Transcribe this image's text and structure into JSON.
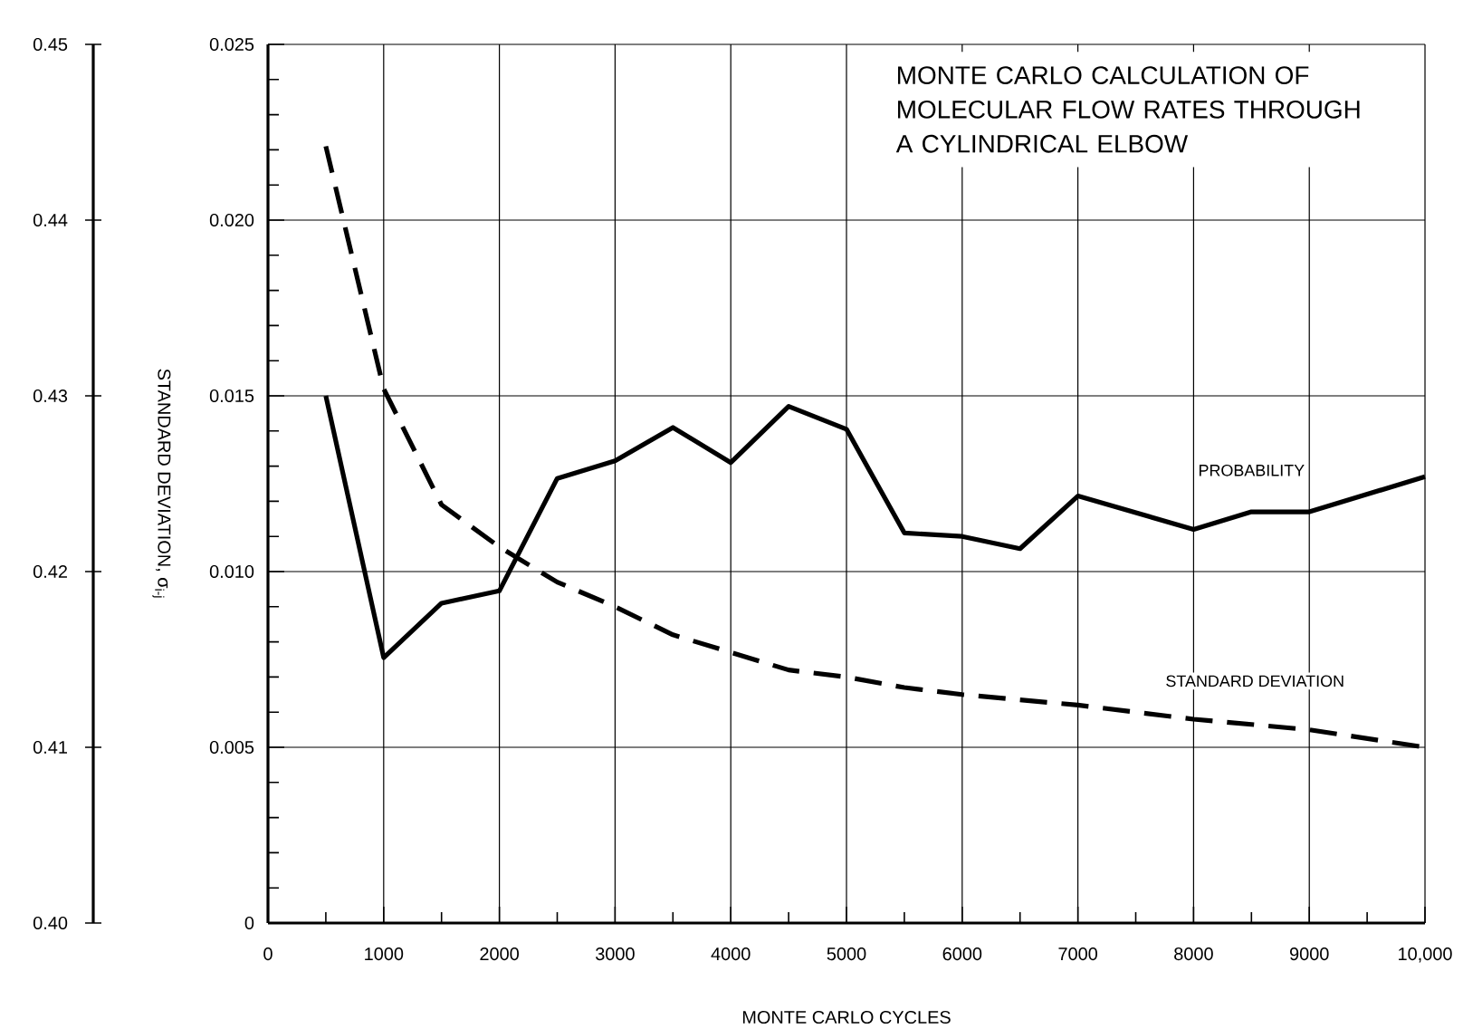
{
  "chart_data": {
    "type": "line",
    "title": "MONTE CARLO CALCULATION OF MOLECULAR FLOW RATES THROUGH A CYLINDRICAL ELBOW",
    "xlabel": "MONTE CARLO CYCLES",
    "ylabel": "STANDARD DEVIATION, σ$_{i-j}$",
    "series": [
      {
        "name": "PROBABILITY",
        "color": "#000000",
        "line_style": "solid",
        "axis": "y2",
        "x": [
          500,
          1000,
          1500,
          2000,
          2500,
          3000,
          3500,
          4000,
          4500,
          5000,
          5500,
          6000,
          6500,
          7000,
          8000,
          8500,
          9000,
          10000
        ],
        "values": [
          0.43,
          0.4151,
          0.4182,
          0.4189,
          0.4253,
          0.4263,
          0.4282,
          0.4262,
          0.4294,
          0.4281,
          0.4222,
          0.422,
          0.4213,
          0.4243,
          0.4224,
          0.4234,
          0.4234,
          0.4254
        ]
      },
      {
        "name": "STANDARD DEVIATION",
        "color": "#000000",
        "line_style": "dashed",
        "x": [
          500,
          1000,
          1500,
          2000,
          2500,
          3000,
          3500,
          4000,
          4500,
          5000,
          5500,
          6000,
          7000,
          8000,
          9000,
          10000
        ],
        "values": [
          0.0221,
          0.0152,
          0.0119,
          0.0107,
          0.0097,
          0.009,
          0.0082,
          0.0077,
          0.0072,
          0.007,
          0.0067,
          0.0065,
          0.0062,
          0.0058,
          0.0055,
          0.005
        ]
      }
    ],
    "xlim": [
      0,
      10000
    ],
    "xticks": [
      0,
      {
        "value": 500,
        "label": null
      },
      1000,
      {
        "value": 1500,
        "label": null
      },
      2000,
      {
        "value": 2500,
        "label": null
      },
      3000,
      {
        "value": 3500,
        "label": null
      },
      4000,
      {
        "value": 4500,
        "label": null
      },
      5000,
      {
        "value": 5500,
        "label": null
      },
      6000,
      {
        "value": 6500,
        "label": null
      },
      7000,
      {
        "value": 7500,
        "label": null
      },
      8000,
      {
        "value": 8500,
        "label": null
      },
      9000,
      {
        "value": 9500,
        "label": null
      },
      {
        "value": 10000,
        "label": "10,000"
      }
    ],
    "ylim": [
      0,
      0.025
    ],
    "yticks": [
      0,
      {
        "value": 0.001,
        "label": null
      },
      {
        "value": 0.002,
        "label": null
      },
      {
        "value": 0.003,
        "label": null
      },
      {
        "value": 0.004,
        "label": null
      },
      0.005,
      {
        "value": 0.006,
        "label": null
      },
      {
        "value": 0.007,
        "label": null
      },
      {
        "value": 0.008,
        "label": null
      },
      {
        "value": 0.009,
        "label": null
      },
      {
        "value": 0.01,
        "label": "0.010"
      },
      {
        "value": 0.011,
        "label": null
      },
      {
        "value": 0.012,
        "label": null
      },
      {
        "value": 0.013,
        "label": null
      },
      {
        "value": 0.014,
        "label": null
      },
      0.015,
      {
        "value": 0.016,
        "label": null
      },
      {
        "value": 0.017,
        "label": null
      },
      {
        "value": 0.018,
        "label": null
      },
      {
        "value": 0.019,
        "label": null
      },
      {
        "value": 0.02,
        "label": "0.020"
      },
      {
        "value": 0.021,
        "label": null
      },
      {
        "value": 0.022,
        "label": null
      },
      {
        "value": 0.023,
        "label": null
      },
      {
        "value": 0.024,
        "label": null
      },
      0.025
    ],
    "y2lim": [
      0.4,
      0.45
    ],
    "y2ticks": [
      {
        "value": 0.4,
        "label": "0.40"
      },
      {
        "value": 0.402,
        "label": null
      },
      {
        "value": 0.404,
        "label": null
      },
      {
        "value": 0.406,
        "label": null
      },
      {
        "value": 0.408,
        "label": null
      },
      0.41,
      {
        "value": 0.412,
        "label": null
      },
      {
        "value": 0.414,
        "label": null
      },
      {
        "value": 0.416,
        "label": null
      },
      {
        "value": 0.418,
        "label": null
      },
      {
        "value": 0.42,
        "label": "0.42"
      },
      {
        "value": 0.422,
        "label": null
      },
      {
        "value": 0.424,
        "label": null
      },
      {
        "value": 0.426,
        "label": null
      },
      {
        "value": 0.428,
        "label": null
      },
      0.43,
      {
        "value": 0.432,
        "label": null
      },
      {
        "value": 0.434,
        "label": null
      },
      {
        "value": 0.436,
        "label": null
      },
      {
        "value": 0.438,
        "label": null
      },
      0.44,
      {
        "value": 0.442,
        "label": null
      },
      {
        "value": 0.444,
        "label": null
      },
      {
        "value": 0.446,
        "label": null
      },
      {
        "value": 0.448,
        "label": null
      },
      0.45
    ],
    "grid": true
  }
}
